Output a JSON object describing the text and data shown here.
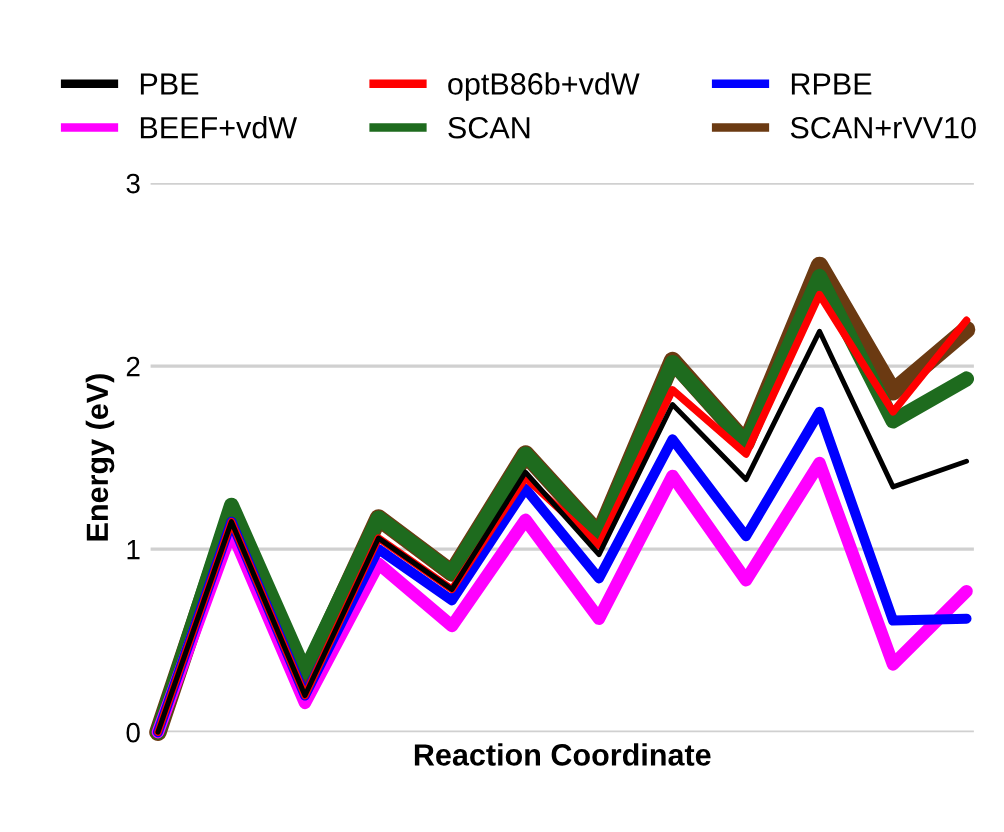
{
  "chart_data": {
    "type": "line",
    "xlabel": "Reaction Coordinate",
    "ylabel": "Energy (eV)",
    "categories": [
      null,
      null,
      null,
      null,
      null,
      null,
      null,
      null,
      null,
      null,
      null,
      null
    ],
    "series": [
      {
        "name": "PBE",
        "color": "#000000",
        "values": [
          0,
          1.15,
          0.2,
          1.06,
          0.78,
          1.42,
          0.97,
          1.79,
          1.38,
          2.19,
          1.34,
          1.48
        ]
      },
      {
        "name": "optB86b+vdW",
        "color": "#ff0000",
        "values": [
          0,
          1.15,
          0.2,
          1.06,
          0.78,
          1.39,
          1.02,
          1.87,
          1.52,
          2.39,
          1.75,
          2.25
        ]
      },
      {
        "name": "RPBE",
        "color": "#0000ff",
        "values": [
          0,
          1.15,
          0.2,
          1.0,
          0.72,
          1.33,
          0.84,
          1.6,
          1.07,
          1.75,
          0.61,
          0.62
        ]
      },
      {
        "name": "BEEF+vdW",
        "color": "#ff00ff",
        "values": [
          0,
          1.1,
          0.16,
          0.92,
          0.58,
          1.16,
          0.62,
          1.4,
          0.83,
          1.47,
          0.37,
          0.77
        ]
      },
      {
        "name": "SCAN",
        "color": "#1e6b1e",
        "values": [
          0,
          1.24,
          0.33,
          1.17,
          0.87,
          1.52,
          1.08,
          2.02,
          1.58,
          2.49,
          1.7,
          1.93
        ]
      },
      {
        "name": "SCAN+rVV10",
        "color": "#6b3a12",
        "values": [
          0,
          1.2,
          0.3,
          1.17,
          0.87,
          1.52,
          1.08,
          2.03,
          1.58,
          2.55,
          1.86,
          2.2
        ]
      }
    ],
    "ylim": [
      0,
      3
    ],
    "yticks": [
      0,
      1,
      2,
      3
    ],
    "grid": "y",
    "legend": "top",
    "tick_labels": "y",
    "marker": "none",
    "line_style": "solid"
  }
}
